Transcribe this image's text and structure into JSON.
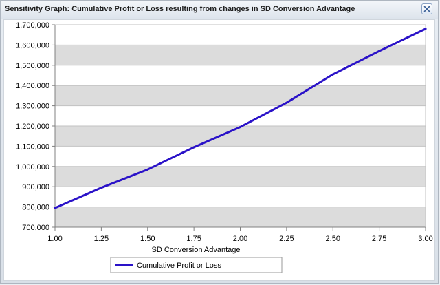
{
  "window": {
    "title": "Sensitivity Graph: Cumulative Profit or Loss resulting from changes in SD Conversion Advantage",
    "close_icon": "close-icon"
  },
  "colors": {
    "series": "#2a12c8",
    "band": "#dcdcdc",
    "axis": "#808080"
  },
  "chart_data": {
    "type": "line",
    "title": "Sensitivity Graph: Cumulative Profit or Loss resulting from changes in SD Conversion Advantage",
    "xlabel": "SD Conversion Advantage",
    "ylabel": "",
    "xlim": [
      1.0,
      3.0
    ],
    "ylim": [
      700000,
      1700000
    ],
    "x_ticks": [
      "1.00",
      "1.25",
      "1.50",
      "1.75",
      "2.00",
      "2.25",
      "2.50",
      "2.75",
      "3.00"
    ],
    "y_ticks": [
      "700,000",
      "800,000",
      "900,000",
      "1,000,000",
      "1,100,000",
      "1,200,000",
      "1,300,000",
      "1,400,000",
      "1,500,000",
      "1,600,000",
      "1,700,000"
    ],
    "grid": "alternating horizontal bands",
    "legend_position": "bottom-center",
    "series": [
      {
        "name": "Cumulative Profit or Loss",
        "x": [
          1.0,
          1.25,
          1.5,
          1.75,
          2.0,
          2.25,
          2.5,
          2.75,
          3.0
        ],
        "values": [
          795000,
          895000,
          985000,
          1095000,
          1195000,
          1315000,
          1455000,
          1570000,
          1680000
        ]
      }
    ]
  }
}
